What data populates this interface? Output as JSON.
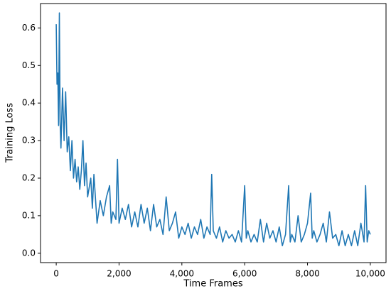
{
  "chart_data": {
    "type": "line",
    "xlabel": "Time Frames",
    "ylabel": "Training Loss",
    "x": [
      0,
      25,
      50,
      75,
      100,
      125,
      150,
      200,
      250,
      300,
      350,
      400,
      450,
      500,
      550,
      600,
      650,
      700,
      750,
      800,
      850,
      900,
      950,
      1000,
      1100,
      1150,
      1200,
      1300,
      1400,
      1500,
      1600,
      1700,
      1750,
      1800,
      1900,
      1950,
      2000,
      2100,
      2200,
      2300,
      2400,
      2500,
      2600,
      2700,
      2800,
      2900,
      3000,
      3100,
      3200,
      3300,
      3400,
      3500,
      3600,
      3700,
      3800,
      3900,
      4000,
      4100,
      4200,
      4300,
      4400,
      4500,
      4600,
      4700,
      4800,
      4900,
      4950,
      5000,
      5100,
      5200,
      5300,
      5400,
      5500,
      5600,
      5700,
      5800,
      5900,
      6000,
      6050,
      6100,
      6200,
      6300,
      6400,
      6500,
      6600,
      6700,
      6800,
      6900,
      7000,
      7100,
      7200,
      7300,
      7400,
      7450,
      7500,
      7600,
      7700,
      7800,
      7900,
      8000,
      8100,
      8150,
      8200,
      8300,
      8400,
      8500,
      8600,
      8700,
      8800,
      8900,
      9000,
      9100,
      9200,
      9300,
      9400,
      9500,
      9600,
      9700,
      9800,
      9850,
      9900,
      9950,
      10000
    ],
    "series": [
      {
        "name": "Training Loss",
        "color": "#1f77b4",
        "values": [
          0.61,
          0.45,
          0.48,
          0.34,
          0.64,
          0.35,
          0.28,
          0.44,
          0.3,
          0.43,
          0.27,
          0.31,
          0.22,
          0.3,
          0.2,
          0.25,
          0.19,
          0.23,
          0.17,
          0.22,
          0.3,
          0.18,
          0.24,
          0.15,
          0.2,
          0.12,
          0.21,
          0.08,
          0.14,
          0.1,
          0.15,
          0.18,
          0.08,
          0.11,
          0.09,
          0.25,
          0.08,
          0.12,
          0.09,
          0.13,
          0.07,
          0.11,
          0.07,
          0.13,
          0.08,
          0.12,
          0.06,
          0.13,
          0.07,
          0.09,
          0.05,
          0.15,
          0.06,
          0.08,
          0.11,
          0.04,
          0.07,
          0.05,
          0.08,
          0.04,
          0.07,
          0.05,
          0.09,
          0.04,
          0.07,
          0.05,
          0.21,
          0.06,
          0.04,
          0.07,
          0.03,
          0.06,
          0.04,
          0.05,
          0.03,
          0.06,
          0.03,
          0.18,
          0.04,
          0.06,
          0.03,
          0.05,
          0.03,
          0.09,
          0.03,
          0.08,
          0.04,
          0.06,
          0.03,
          0.07,
          0.02,
          0.05,
          0.18,
          0.03,
          0.05,
          0.03,
          0.1,
          0.03,
          0.05,
          0.08,
          0.16,
          0.04,
          0.06,
          0.03,
          0.05,
          0.08,
          0.03,
          0.11,
          0.04,
          0.05,
          0.02,
          0.06,
          0.02,
          0.05,
          0.02,
          0.06,
          0.02,
          0.08,
          0.03,
          0.18,
          0.03,
          0.06,
          0.05
        ]
      }
    ],
    "xlim": [
      -500,
      10500
    ],
    "xticks": [
      0,
      {
        "value": 2000,
        "label": "2,000"
      },
      {
        "value": 4000,
        "label": "4,000"
      },
      {
        "value": 6000,
        "label": "6,000"
      },
      {
        "value": 8000,
        "label": "8,000"
      },
      {
        "value": 10000,
        "label": "10,000"
      }
    ],
    "ylim": [
      -0.025,
      0.665
    ],
    "yticks": [
      {
        "value": 0,
        "label": "0.0"
      },
      0.1,
      0.2,
      0.3,
      0.4,
      0.5,
      0.6
    ],
    "grid": false
  }
}
